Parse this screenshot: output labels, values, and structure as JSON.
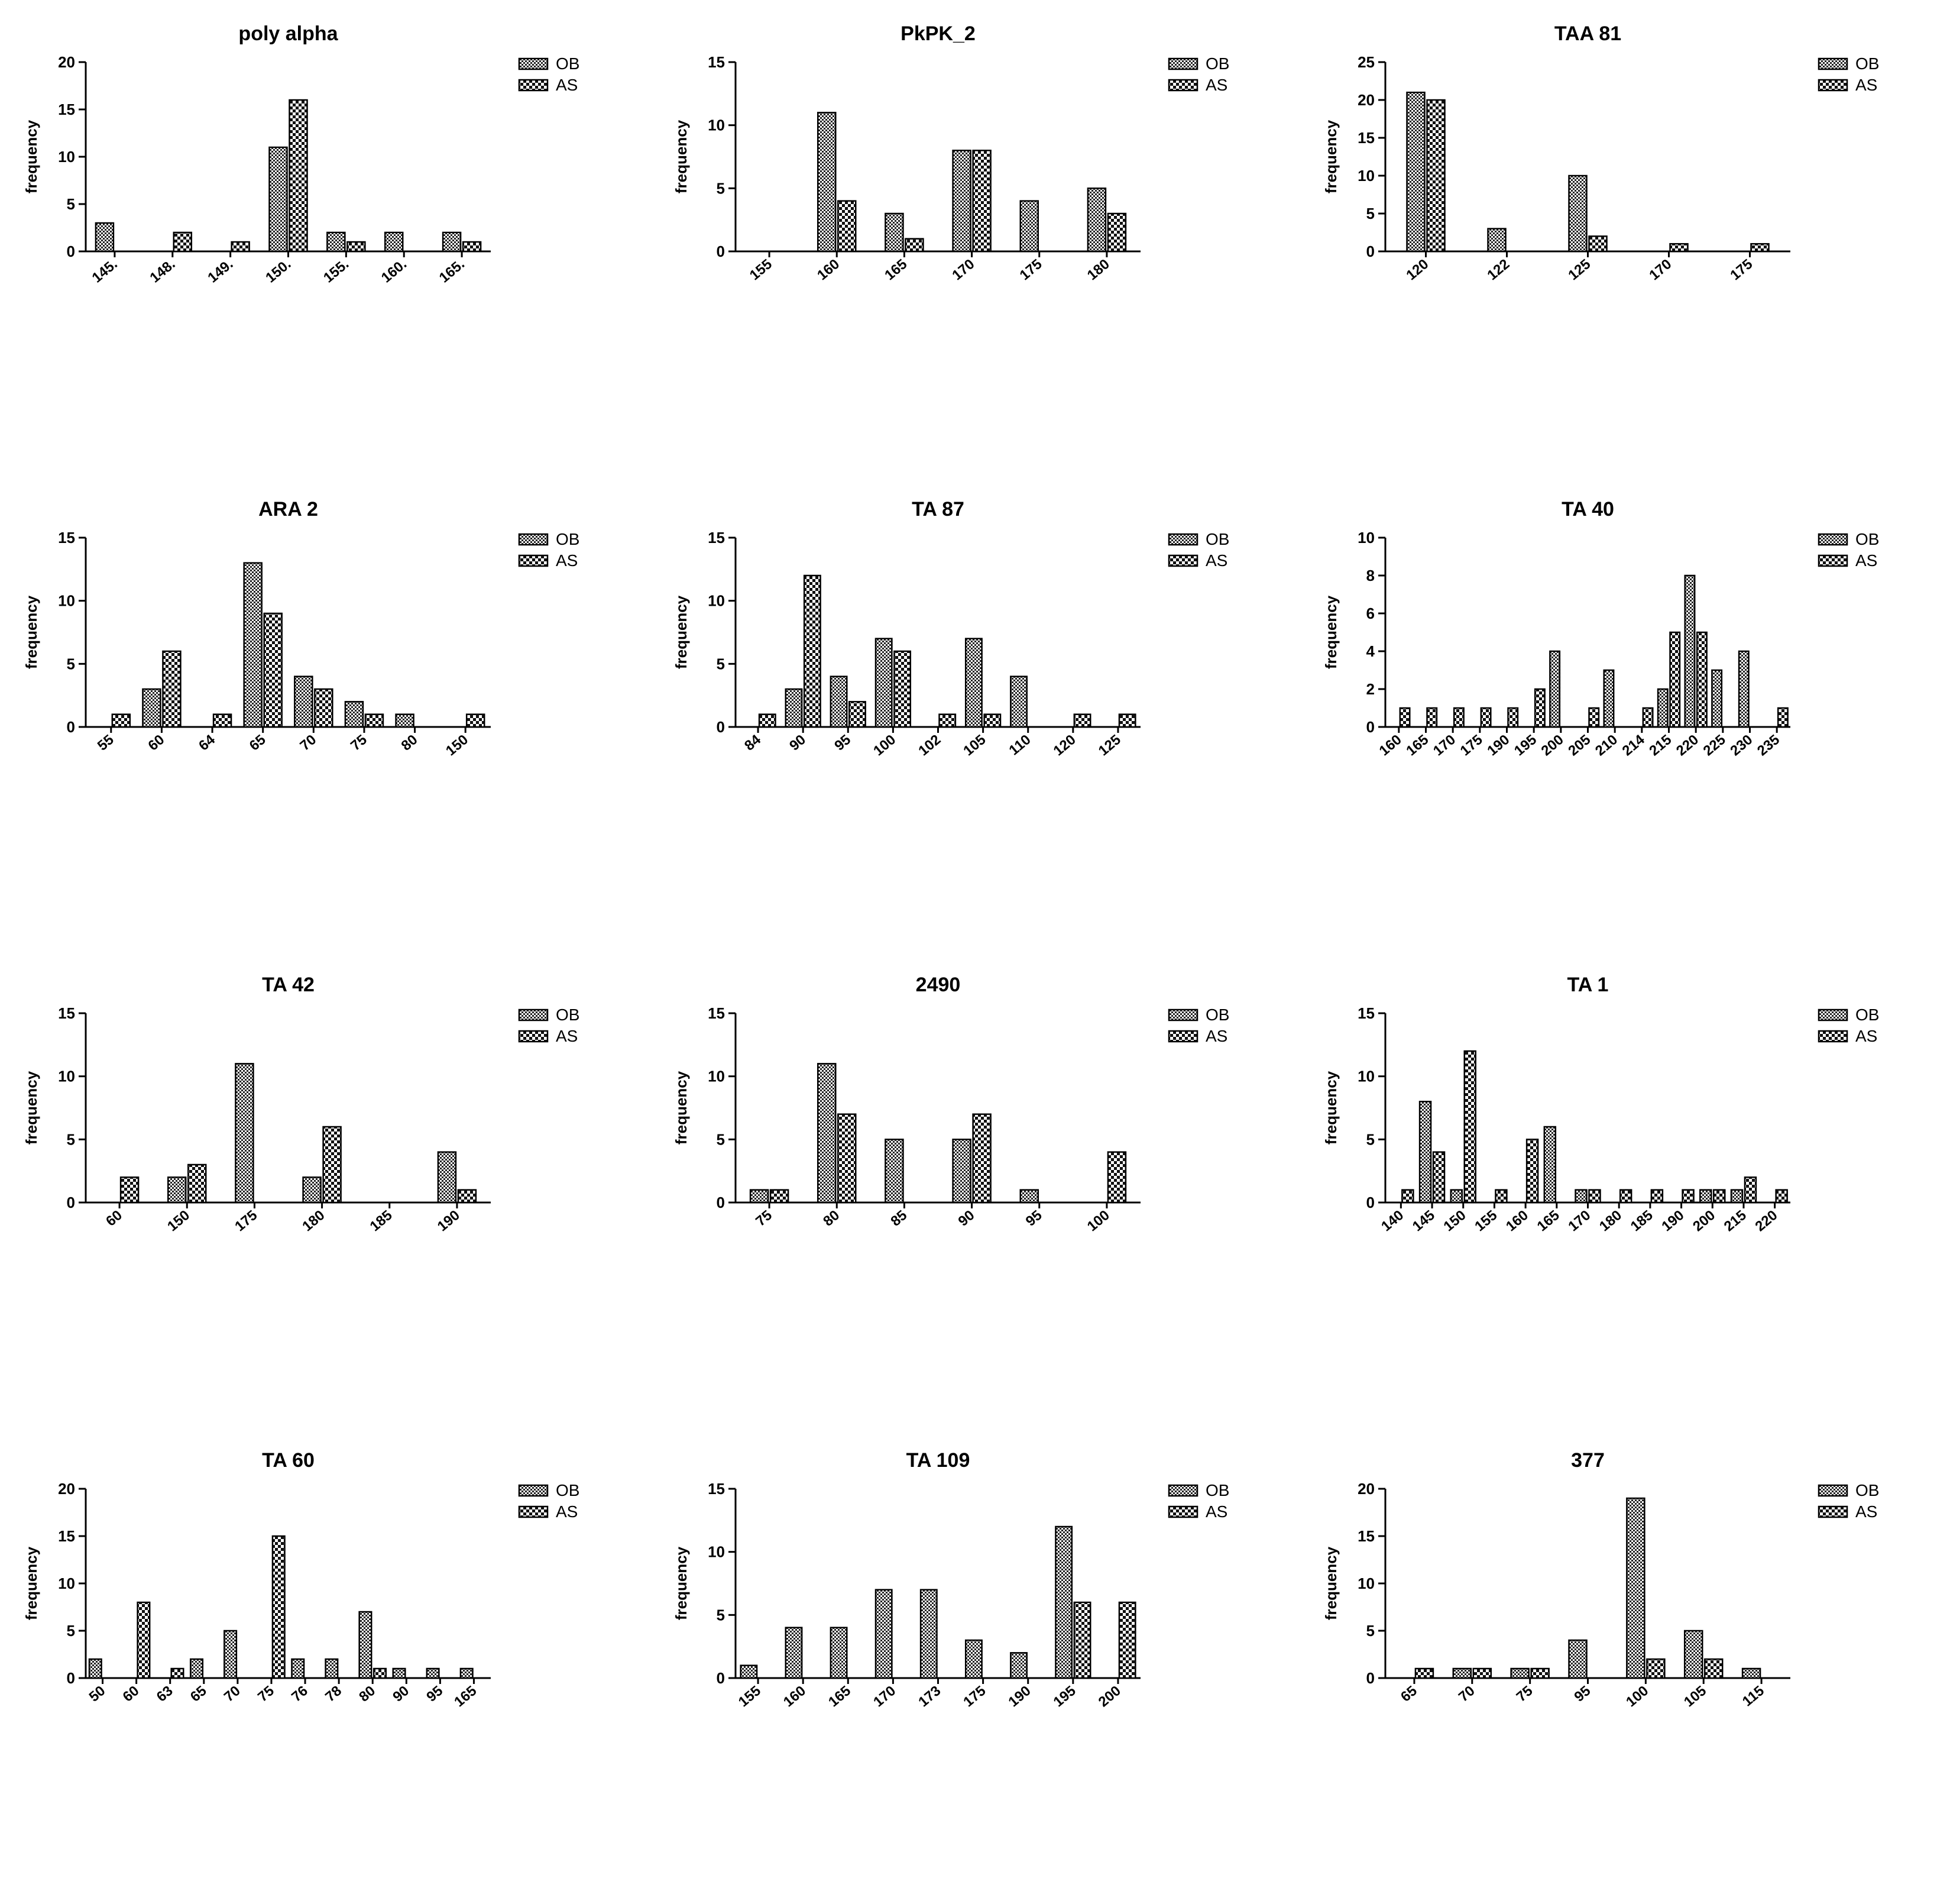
{
  "legend_labels": [
    "OB",
    "AS"
  ],
  "chart_data": [
    {
      "type": "bar",
      "title": "poly alpha",
      "ylabel": "frequency",
      "ylim": [
        0,
        20
      ],
      "yticks": [
        0,
        5,
        10,
        15,
        20
      ],
      "legend": "top-right",
      "categories": [
        "145.",
        "148.",
        "149.",
        "150.",
        "155.",
        "160.",
        "165."
      ],
      "series": [
        {
          "name": "OB",
          "values": [
            3,
            0,
            0,
            11,
            2,
            2,
            2
          ]
        },
        {
          "name": "AS",
          "values": [
            0,
            2,
            1,
            16,
            1,
            0,
            1
          ]
        }
      ]
    },
    {
      "type": "bar",
      "title": "PkPK_2",
      "ylabel": "frequency",
      "ylim": [
        0,
        15
      ],
      "yticks": [
        0,
        5,
        10,
        15
      ],
      "legend": "top-right",
      "categories": [
        "155",
        "160",
        "165",
        "170",
        "175",
        "180"
      ],
      "series": [
        {
          "name": "OB",
          "values": [
            0,
            11,
            3,
            8,
            4,
            5
          ]
        },
        {
          "name": "AS",
          "values": [
            0,
            4,
            1,
            8,
            0,
            3
          ]
        }
      ]
    },
    {
      "type": "bar",
      "title": "TAA 81",
      "ylabel": "frequency",
      "ylim": [
        0,
        25
      ],
      "yticks": [
        0,
        5,
        10,
        15,
        20,
        25
      ],
      "legend": "top-right",
      "categories": [
        "120",
        "122",
        "125",
        "170",
        "175"
      ],
      "series": [
        {
          "name": "OB",
          "values": [
            21,
            3,
            10,
            0,
            0
          ]
        },
        {
          "name": "AS",
          "values": [
            20,
            0,
            2,
            1,
            1
          ]
        }
      ]
    },
    {
      "type": "bar",
      "title": "ARA 2",
      "ylabel": "frequency",
      "ylim": [
        0,
        15
      ],
      "yticks": [
        0,
        5,
        10,
        15
      ],
      "legend": "top-right",
      "categories": [
        "55",
        "60",
        "64",
        "65",
        "70",
        "75",
        "80",
        "150"
      ],
      "series": [
        {
          "name": "OB",
          "values": [
            0,
            3,
            0,
            13,
            4,
            2,
            1,
            0
          ]
        },
        {
          "name": "AS",
          "values": [
            1,
            6,
            1,
            9,
            3,
            1,
            0,
            1
          ]
        }
      ]
    },
    {
      "type": "bar",
      "title": "TA 87",
      "ylabel": "frequency",
      "ylim": [
        0,
        15
      ],
      "yticks": [
        0,
        5,
        10,
        15
      ],
      "legend": "top-right",
      "categories": [
        "84",
        "90",
        "95",
        "100",
        "102",
        "105",
        "110",
        "120",
        "125"
      ],
      "series": [
        {
          "name": "OB",
          "values": [
            0,
            3,
            4,
            7,
            0,
            7,
            4,
            0,
            0
          ]
        },
        {
          "name": "AS",
          "values": [
            1,
            12,
            2,
            6,
            1,
            1,
            0,
            1,
            1
          ]
        }
      ]
    },
    {
      "type": "bar",
      "title": "TA 40",
      "ylabel": "frequency",
      "ylim": [
        0,
        10
      ],
      "yticks": [
        0,
        2,
        4,
        6,
        8,
        10
      ],
      "legend": "top-right",
      "categories": [
        "160",
        "165",
        "170",
        "175",
        "190",
        "195",
        "200",
        "205",
        "210",
        "214",
        "215",
        "220",
        "225",
        "230",
        "235"
      ],
      "series": [
        {
          "name": "OB",
          "values": [
            0,
            0,
            0,
            0,
            0,
            0,
            4,
            0,
            3,
            0,
            2,
            8,
            3,
            4,
            0
          ]
        },
        {
          "name": "AS",
          "values": [
            1,
            1,
            1,
            1,
            1,
            2,
            0,
            1,
            0,
            1,
            5,
            5,
            0,
            0,
            1
          ]
        }
      ]
    },
    {
      "type": "bar",
      "title": "TA 42",
      "ylabel": "frequency",
      "ylim": [
        0,
        15
      ],
      "yticks": [
        0,
        5,
        10,
        15
      ],
      "legend": "top-right",
      "categories": [
        "60",
        "150",
        "175",
        "180",
        "185",
        "190"
      ],
      "series": [
        {
          "name": "OB",
          "values": [
            0,
            2,
            11,
            2,
            0,
            4
          ]
        },
        {
          "name": "AS",
          "values": [
            2,
            3,
            0,
            6,
            0,
            1
          ]
        }
      ]
    },
    {
      "type": "bar",
      "title": "2490",
      "ylabel": "frequency",
      "ylim": [
        0,
        15
      ],
      "yticks": [
        0,
        5,
        10,
        15
      ],
      "legend": "top-right",
      "categories": [
        "75",
        "80",
        "85",
        "90",
        "95",
        "100"
      ],
      "series": [
        {
          "name": "OB",
          "values": [
            1,
            11,
            5,
            5,
            1,
            0
          ]
        },
        {
          "name": "AS",
          "values": [
            1,
            7,
            0,
            7,
            0,
            4
          ]
        }
      ]
    },
    {
      "type": "bar",
      "title": "TA 1",
      "ylabel": "frequency",
      "ylim": [
        0,
        15
      ],
      "yticks": [
        0,
        5,
        10,
        15
      ],
      "legend": "top-right",
      "categories": [
        "140",
        "145",
        "150",
        "155",
        "160",
        "165",
        "170",
        "180",
        "185",
        "190",
        "200",
        "215",
        "220"
      ],
      "series": [
        {
          "name": "OB",
          "values": [
            0,
            8,
            1,
            0,
            0,
            6,
            1,
            0,
            0,
            0,
            1,
            1,
            0
          ]
        },
        {
          "name": "AS",
          "values": [
            1,
            4,
            12,
            1,
            5,
            0,
            1,
            1,
            1,
            1,
            1,
            2,
            1
          ]
        }
      ]
    },
    {
      "type": "bar",
      "title": "TA 60",
      "ylabel": "frequency",
      "ylim": [
        0,
        20
      ],
      "yticks": [
        0,
        5,
        10,
        15,
        20
      ],
      "legend": "top-right",
      "categories": [
        "50",
        "60",
        "63",
        "65",
        "70",
        "75",
        "76",
        "78",
        "80",
        "90",
        "95",
        "165"
      ],
      "series": [
        {
          "name": "OB",
          "values": [
            2,
            0,
            0,
            2,
            5,
            0,
            2,
            2,
            7,
            1,
            1,
            1
          ]
        },
        {
          "name": "AS",
          "values": [
            0,
            8,
            1,
            0,
            0,
            15,
            0,
            0,
            1,
            0,
            0,
            0
          ]
        }
      ]
    },
    {
      "type": "bar",
      "title": "TA 109",
      "ylabel": "frequency",
      "ylim": [
        0,
        15
      ],
      "yticks": [
        0,
        5,
        10,
        15
      ],
      "legend": "top-right",
      "categories": [
        "155",
        "160",
        "165",
        "170",
        "173",
        "175",
        "190",
        "195",
        "200"
      ],
      "series": [
        {
          "name": "OB",
          "values": [
            1,
            4,
            4,
            7,
            7,
            3,
            2,
            12,
            0
          ]
        },
        {
          "name": "AS",
          "values": [
            0,
            0,
            0,
            0,
            0,
            0,
            0,
            6,
            6
          ]
        }
      ]
    },
    {
      "type": "bar",
      "title": "377",
      "ylabel": "frequency",
      "ylim": [
        0,
        20
      ],
      "yticks": [
        0,
        5,
        10,
        15,
        20
      ],
      "legend": "top-right",
      "categories": [
        "65",
        "70",
        "75",
        "95",
        "100",
        "105",
        "115"
      ],
      "series": [
        {
          "name": "OB",
          "values": [
            0,
            1,
            1,
            4,
            19,
            5,
            1
          ]
        },
        {
          "name": "AS",
          "values": [
            1,
            1,
            1,
            0,
            2,
            2,
            0
          ]
        }
      ]
    }
  ]
}
